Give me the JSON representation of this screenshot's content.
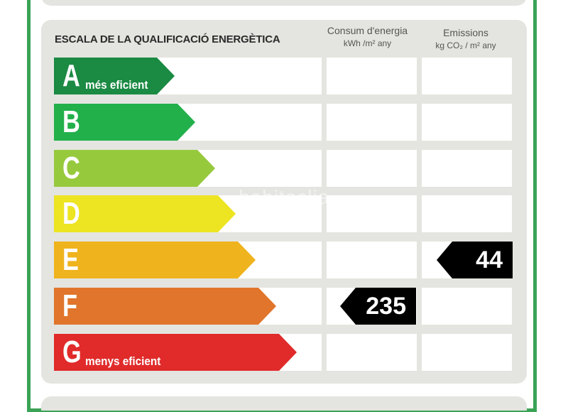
{
  "title": "ESCALA DE LA QUALIFICACIÓ ENERGÈTICA",
  "columns": {
    "consum": {
      "label": "Consum d'energia",
      "units": "kWh /m² any"
    },
    "emissions": {
      "label": "Emissions",
      "units": "kg CO₂ / m² any"
    }
  },
  "ratings": [
    {
      "letter": "A",
      "caption": "més eficient",
      "color": "#1b8a43"
    },
    {
      "letter": "B",
      "caption": "",
      "color": "#22b04b"
    },
    {
      "letter": "C",
      "caption": "",
      "color": "#97c93d"
    },
    {
      "letter": "D",
      "caption": "",
      "color": "#ede422"
    },
    {
      "letter": "E",
      "caption": "",
      "color": "#efb31d"
    },
    {
      "letter": "F",
      "caption": "",
      "color": "#e0752b"
    },
    {
      "letter": "G",
      "caption": "menys eficient",
      "color": "#e02b2a"
    }
  ],
  "consum_value": {
    "value": "235",
    "rating": "F"
  },
  "emissions_value": {
    "value": "44",
    "rating": "E"
  },
  "watermark": "habitaclia"
}
